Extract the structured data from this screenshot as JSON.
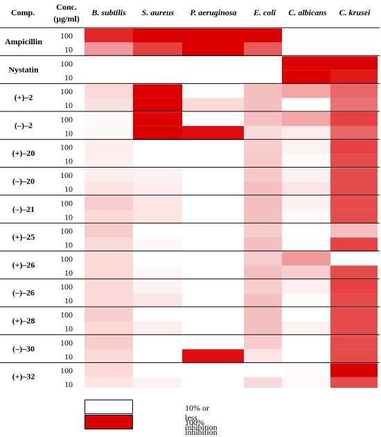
{
  "header": {
    "compound": "Comp.",
    "conc_line1": "Conc.",
    "conc_line2": "(μg/ml)",
    "organisms": [
      "B. subtilis",
      "S. aureus",
      "P. aeruginosa",
      "E. coli",
      "C. albicans",
      "C. krusei"
    ]
  },
  "colors": {
    "low": "#ffffff",
    "high": "#dd0000"
  },
  "legend": {
    "low_label": "10% or less inhibition",
    "high_label": "100% inhibition"
  },
  "chart_data": {
    "type": "heatmap",
    "value_meaning": "inhibition fraction (0 = 10% or less inhibition, 1 = 100% inhibition)",
    "columns": [
      "B. subtilis",
      "S. aureus",
      "P. aeruginosa",
      "E. coli",
      "C. albicans",
      "C. krusei"
    ],
    "compounds": [
      {
        "name": "Ampicillin",
        "rows": [
          {
            "conc": "100",
            "values": [
              0.85,
              1.0,
              1.0,
              1.0,
              null,
              null
            ]
          },
          {
            "conc": "10",
            "values": [
              0.4,
              0.75,
              1.0,
              0.65,
              null,
              null
            ]
          }
        ]
      },
      {
        "name": "Nystatin",
        "rows": [
          {
            "conc": "100",
            "values": [
              null,
              null,
              null,
              null,
              1.0,
              1.0
            ]
          },
          {
            "conc": "10",
            "values": [
              null,
              null,
              null,
              null,
              1.0,
              0.9
            ]
          }
        ]
      },
      {
        "name": "(+)–2",
        "rows": [
          {
            "conc": "100",
            "values": [
              0.15,
              1.0,
              0.0,
              0.25,
              0.35,
              0.6
            ]
          },
          {
            "conc": "10",
            "values": [
              0.12,
              1.0,
              0.15,
              0.25,
              0.0,
              0.55
            ]
          }
        ]
      },
      {
        "name": "(–)–2",
        "rows": [
          {
            "conc": "100",
            "values": [
              0.03,
              1.0,
              0.0,
              0.25,
              0.35,
              0.75
            ]
          },
          {
            "conc": "10",
            "values": [
              0.03,
              1.0,
              0.95,
              0.15,
              0.08,
              0.6
            ]
          }
        ]
      },
      {
        "name": "(+)–20",
        "rows": [
          {
            "conc": "100",
            "values": [
              0.07,
              0.0,
              0.0,
              0.2,
              0.05,
              0.75
            ]
          },
          {
            "conc": "10",
            "values": [
              0.07,
              0.0,
              0.0,
              0.22,
              0.02,
              0.7
            ]
          }
        ]
      },
      {
        "name": "(–)–20",
        "rows": [
          {
            "conc": "100",
            "values": [
              0.07,
              0.05,
              0.0,
              0.22,
              0.05,
              0.7
            ]
          },
          {
            "conc": "10",
            "values": [
              0.1,
              0.07,
              0.0,
              0.25,
              0.1,
              0.7
            ]
          }
        ]
      },
      {
        "name": "(–)–21",
        "rows": [
          {
            "conc": "100",
            "values": [
              0.2,
              0.1,
              0.0,
              0.25,
              0.05,
              0.7
            ]
          },
          {
            "conc": "10",
            "values": [
              0.15,
              0.1,
              0.0,
              0.25,
              0.03,
              0.7
            ]
          }
        ]
      },
      {
        "name": "(+)–25",
        "rows": [
          {
            "conc": "100",
            "values": [
              0.2,
              0.0,
              0.0,
              0.2,
              0.0,
              0.25
            ]
          },
          {
            "conc": "10",
            "values": [
              0.15,
              0.03,
              0.0,
              0.25,
              0.02,
              0.75
            ]
          }
        ]
      },
      {
        "name": "(+)–26",
        "rows": [
          {
            "conc": "100",
            "values": [
              0.15,
              0.0,
              0.0,
              0.2,
              0.4,
              0.0
            ]
          },
          {
            "conc": "10",
            "values": [
              0.15,
              0.03,
              0.0,
              0.25,
              0.2,
              0.7
            ]
          }
        ]
      },
      {
        "name": "(–)–26",
        "rows": [
          {
            "conc": "100",
            "values": [
              0.15,
              0.05,
              0.0,
              0.2,
              0.07,
              0.75
            ]
          },
          {
            "conc": "10",
            "values": [
              0.15,
              0.1,
              0.0,
              0.25,
              0.02,
              0.7
            ]
          }
        ]
      },
      {
        "name": "(+)–28",
        "rows": [
          {
            "conc": "100",
            "values": [
              0.2,
              0.0,
              0.0,
              0.25,
              0.0,
              0.7
            ]
          },
          {
            "conc": "10",
            "values": [
              0.15,
              0.07,
              0.0,
              0.25,
              0.05,
              0.7
            ]
          }
        ]
      },
      {
        "name": "(–)–30",
        "rows": [
          {
            "conc": "100",
            "values": [
              0.2,
              0.0,
              0.0,
              0.2,
              0.0,
              0.7
            ]
          },
          {
            "conc": "10",
            "values": [
              0.15,
              0.0,
              0.95,
              0.1,
              0.0,
              0.7
            ]
          }
        ]
      },
      {
        "name": "(+)–32",
        "rows": [
          {
            "conc": "100",
            "values": [
              0.15,
              0.0,
              0.0,
              0.0,
              0.02,
              1.0
            ]
          },
          {
            "conc": "10",
            "values": [
              0.1,
              0.05,
              0.0,
              0.15,
              0.03,
              0.7
            ]
          }
        ]
      }
    ]
  }
}
